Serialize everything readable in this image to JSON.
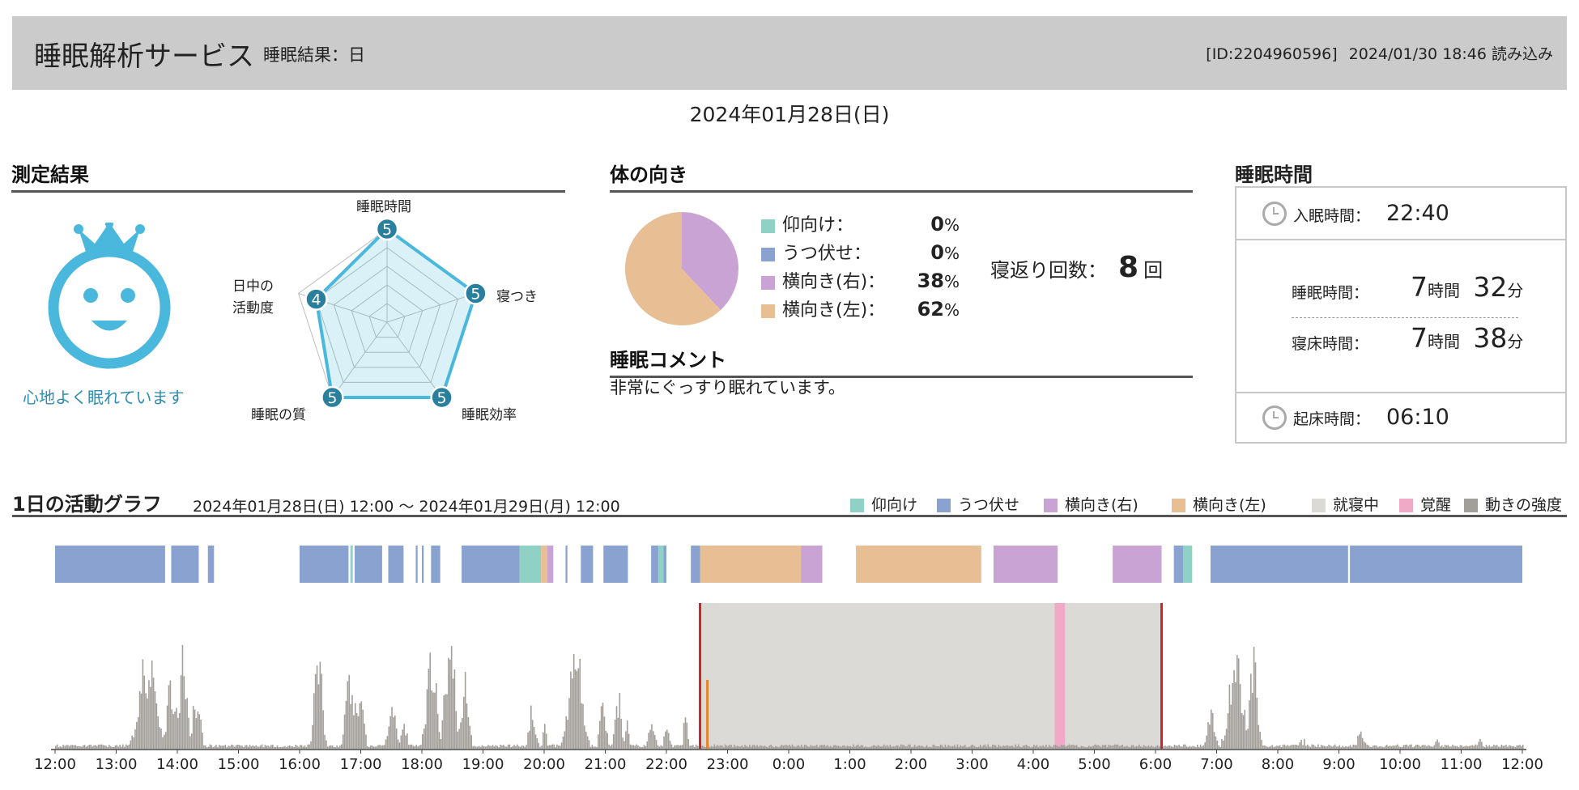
{
  "header": {
    "app_title": "睡眠解析サービス",
    "subtitle": "睡眠結果：日",
    "id_text": "[ID:2204960596]",
    "loaded_text": "2024/01/30 18:46 読み込み"
  },
  "date_title": "2024年01月28日(日)",
  "measurement": {
    "section_title": "測定結果",
    "mood_caption": "心地よく眠れています",
    "colors": {
      "accent": "#4ab8dd",
      "dot": "#2a7f9c"
    },
    "radar": [
      {
        "label": "睡眠時間",
        "score": 5
      },
      {
        "label": "寝つき",
        "score": 5
      },
      {
        "label": "睡眠効率",
        "score": 5
      },
      {
        "label": "睡眠の質",
        "score": 5
      },
      {
        "label": "日中の活動度",
        "score": 4
      }
    ],
    "radar_label_lines": {
      "top": "睡眠時間",
      "right": "寝つき",
      "bottom_right": "睡眠効率",
      "bottom_left": "睡眠の質",
      "left_line1": "日中の",
      "left_line2": "活動度"
    },
    "radar_max": 5
  },
  "orientation": {
    "section_title": "体の向き",
    "items": [
      {
        "label": "仰向け：",
        "value": "0",
        "unit": "%",
        "pct": 0,
        "color": "#8fd1c4"
      },
      {
        "label": "うつ伏せ：",
        "value": "0",
        "unit": "%",
        "pct": 0,
        "color": "#8aa2cf"
      },
      {
        "label": "横向き(右)：",
        "value": "38",
        "unit": "%",
        "pct": 38,
        "color": "#c9a3d4"
      },
      {
        "label": "横向き(左)：",
        "value": "62",
        "unit": "%",
        "pct": 62,
        "color": "#e8bf94"
      }
    ],
    "turns_label": "寝返り回数：",
    "turns_value": "8",
    "turns_unit": "回"
  },
  "comment": {
    "section_title": "睡眠コメント",
    "text": "非常にぐっすり眠れています。"
  },
  "sleep_time": {
    "section_title": "睡眠時間",
    "sleep_onset_label": "入眠時間：",
    "sleep_onset_value": "22:40",
    "sleep_duration_label": "睡眠時間：",
    "sleep_duration_hours": "7",
    "sleep_duration_minutes": "32",
    "bed_duration_label": "寝床時間：",
    "bed_duration_hours": "7",
    "bed_duration_minutes": "38",
    "hour_unit": "時間",
    "minute_unit": "分",
    "wake_label": "起床時間：",
    "wake_value": "06:10"
  },
  "activity_graph": {
    "title": "1日の活動グラフ",
    "range": "2024年01月28日(日) 12:00 ～ 2024年01月29日(月) 12:00",
    "legend": [
      {
        "label": "仰向け",
        "color": "#8fd1c4"
      },
      {
        "label": "うつ伏せ",
        "color": "#8aa2cf"
      },
      {
        "label": "横向き(右)",
        "color": "#c9a3d4"
      },
      {
        "label": "横向き(左)",
        "color": "#e8bf94"
      },
      {
        "label": "就寝中",
        "color": "#dcdad7"
      },
      {
        "label": "覚醒",
        "color": "#f0a9c6"
      },
      {
        "label": "動きの強度",
        "color": "#a29e9a"
      }
    ]
  },
  "chart_data": {
    "type": "bar",
    "x_ticks": [
      "12:00",
      "13:00",
      "14:00",
      "15:00",
      "16:00",
      "17:00",
      "18:00",
      "19:00",
      "20:00",
      "21:00",
      "22:00",
      "23:00",
      "0:00",
      "1:00",
      "2:00",
      "3:00",
      "4:00",
      "5:00",
      "6:00",
      "7:00",
      "8:00",
      "9:00",
      "10:00",
      "11:00",
      "12:00"
    ],
    "x_range_hours": [
      12,
      36
    ],
    "posture_segments": [
      {
        "start": 12.0,
        "end": 13.8,
        "posture": "うつ伏せ"
      },
      {
        "start": 13.9,
        "end": 14.35,
        "posture": "うつ伏せ"
      },
      {
        "start": 14.5,
        "end": 14.6,
        "posture": "うつ伏せ"
      },
      {
        "start": 16.0,
        "end": 16.8,
        "posture": "うつ伏せ"
      },
      {
        "start": 16.83,
        "end": 16.87,
        "posture": "仰向け"
      },
      {
        "start": 16.9,
        "end": 17.35,
        "posture": "うつ伏せ"
      },
      {
        "start": 17.45,
        "end": 17.7,
        "posture": "うつ伏せ"
      },
      {
        "start": 17.9,
        "end": 17.93,
        "posture": "うつ伏せ"
      },
      {
        "start": 18.0,
        "end": 18.03,
        "posture": "うつ伏せ"
      },
      {
        "start": 18.15,
        "end": 18.3,
        "posture": "うつ伏せ"
      },
      {
        "start": 18.65,
        "end": 19.6,
        "posture": "うつ伏せ"
      },
      {
        "start": 19.6,
        "end": 19.95,
        "posture": "仰向け"
      },
      {
        "start": 19.95,
        "end": 20.05,
        "posture": "横向き(左)"
      },
      {
        "start": 20.05,
        "end": 20.15,
        "posture": "横向き(右)"
      },
      {
        "start": 20.35,
        "end": 20.38,
        "posture": "うつ伏せ"
      },
      {
        "start": 20.6,
        "end": 20.8,
        "posture": "うつ伏せ"
      },
      {
        "start": 20.97,
        "end": 21.37,
        "posture": "うつ伏せ"
      },
      {
        "start": 21.75,
        "end": 21.87,
        "posture": "うつ伏せ"
      },
      {
        "start": 21.87,
        "end": 21.95,
        "posture": "仰向け"
      },
      {
        "start": 21.95,
        "end": 22.0,
        "posture": "うつ伏せ"
      },
      {
        "start": 22.4,
        "end": 22.55,
        "posture": "うつ伏せ"
      },
      {
        "start": 22.55,
        "end": 24.2,
        "posture": "横向き(左)"
      },
      {
        "start": 24.2,
        "end": 24.55,
        "posture": "横向き(右)"
      },
      {
        "start": 25.1,
        "end": 27.15,
        "posture": "横向き(左)"
      },
      {
        "start": 27.35,
        "end": 28.4,
        "posture": "横向き(右)"
      },
      {
        "start": 29.3,
        "end": 30.1,
        "posture": "横向き(右)"
      },
      {
        "start": 30.3,
        "end": 30.45,
        "posture": "うつ伏せ"
      },
      {
        "start": 30.45,
        "end": 30.6,
        "posture": "仰向け"
      },
      {
        "start": 30.9,
        "end": 33.15,
        "posture": "うつ伏せ"
      },
      {
        "start": 33.18,
        "end": 36.0,
        "posture": "うつ伏せ"
      }
    ],
    "in_bed_period": {
      "start": 22.55,
      "end": 30.1
    },
    "awake_period": {
      "start": 28.35,
      "end": 28.52
    },
    "sleep_onset_marker": 22.67,
    "activity_peaks": [
      {
        "center": 13.5,
        "width": 0.25,
        "height": 0.75
      },
      {
        "center": 13.9,
        "width": 0.15,
        "height": 0.55
      },
      {
        "center": 14.1,
        "width": 0.1,
        "height": 0.85
      },
      {
        "center": 14.3,
        "width": 0.12,
        "height": 0.45
      },
      {
        "center": 16.3,
        "width": 0.12,
        "height": 0.85
      },
      {
        "center": 16.8,
        "width": 0.1,
        "height": 0.75
      },
      {
        "center": 16.95,
        "width": 0.15,
        "height": 0.45
      },
      {
        "center": 17.5,
        "width": 0.12,
        "height": 0.4
      },
      {
        "center": 17.7,
        "width": 0.1,
        "height": 0.2
      },
      {
        "center": 18.15,
        "width": 0.15,
        "height": 0.85
      },
      {
        "center": 18.45,
        "width": 0.15,
        "height": 0.9
      },
      {
        "center": 18.7,
        "width": 0.12,
        "height": 0.55
      },
      {
        "center": 19.8,
        "width": 0.1,
        "height": 0.35
      },
      {
        "center": 20.0,
        "width": 0.05,
        "height": 0.2
      },
      {
        "center": 20.5,
        "width": 0.2,
        "height": 0.88
      },
      {
        "center": 20.95,
        "width": 0.1,
        "height": 0.35
      },
      {
        "center": 21.2,
        "width": 0.1,
        "height": 0.45
      },
      {
        "center": 21.35,
        "width": 0.05,
        "height": 0.25
      },
      {
        "center": 21.75,
        "width": 0.1,
        "height": 0.2
      },
      {
        "center": 22.0,
        "width": 0.1,
        "height": 0.15
      },
      {
        "center": 22.3,
        "width": 0.06,
        "height": 0.3
      },
      {
        "center": 30.9,
        "width": 0.12,
        "height": 0.35
      },
      {
        "center": 31.3,
        "width": 0.2,
        "height": 0.85
      },
      {
        "center": 31.6,
        "width": 0.12,
        "height": 0.75
      },
      {
        "center": 32.4,
        "width": 0.1,
        "height": 0.08
      },
      {
        "center": 33.35,
        "width": 0.1,
        "height": 0.15
      },
      {
        "center": 34.6,
        "width": 0.06,
        "height": 0.1
      },
      {
        "center": 35.3,
        "width": 0.05,
        "height": 0.1
      }
    ]
  }
}
